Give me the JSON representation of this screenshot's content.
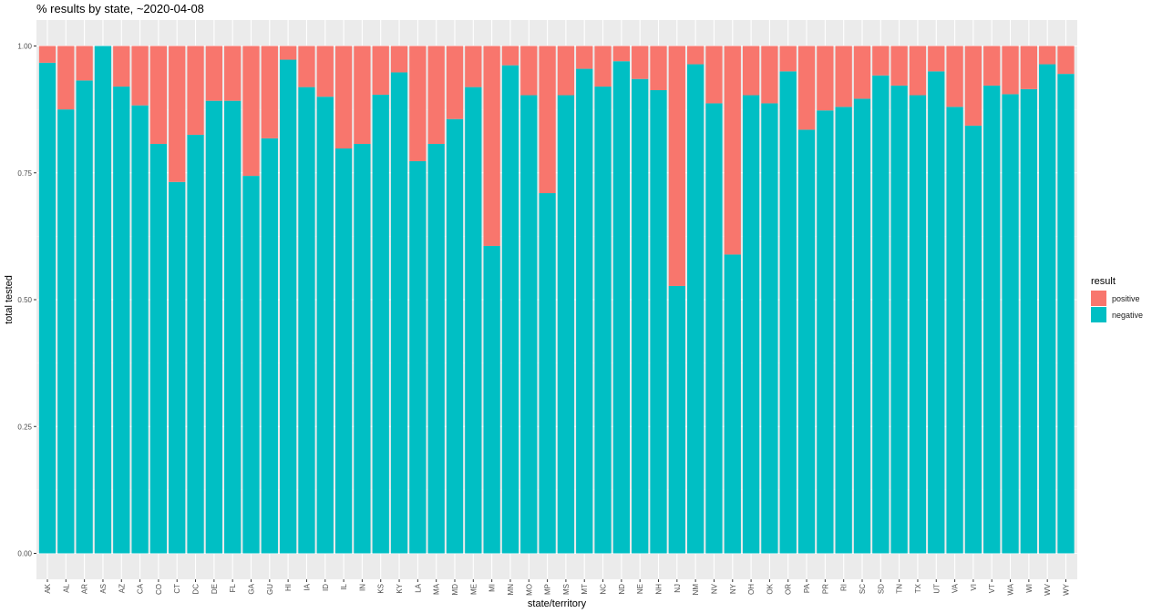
{
  "title": "% results by state, ~2020-04-08",
  "legend": {
    "title": "result",
    "items": [
      {
        "label": "positive",
        "color": "#F8766D"
      },
      {
        "label": "negative",
        "color": "#00BFC4"
      }
    ]
  },
  "chart_data": {
    "type": "bar",
    "stacked": true,
    "xlabel": "state/territory",
    "ylabel": "total tested",
    "ylim": [
      0,
      1
    ],
    "yticks": [
      "0.00",
      "0.25",
      "0.50",
      "0.75",
      "1.00"
    ],
    "grid": true,
    "legend_position": "right",
    "categories": [
      "AK",
      "AL",
      "AR",
      "AS",
      "AZ",
      "CA",
      "CO",
      "CT",
      "DC",
      "DE",
      "FL",
      "GA",
      "GU",
      "HI",
      "IA",
      "ID",
      "IL",
      "IN",
      "KS",
      "KY",
      "LA",
      "MA",
      "MD",
      "ME",
      "MI",
      "MN",
      "MO",
      "MP",
      "MS",
      "MT",
      "NC",
      "ND",
      "NE",
      "NH",
      "NJ",
      "NM",
      "NV",
      "NY",
      "OH",
      "OK",
      "OR",
      "PA",
      "PR",
      "RI",
      "SC",
      "SD",
      "TN",
      "TX",
      "UT",
      "VA",
      "VI",
      "VT",
      "WA",
      "WI",
      "WV",
      "WY"
    ],
    "series": [
      {
        "name": "positive",
        "color": "#F8766D",
        "values": [
          0.033,
          0.125,
          0.068,
          0.0,
          0.08,
          0.117,
          0.193,
          0.268,
          0.175,
          0.108,
          0.108,
          0.256,
          0.182,
          0.027,
          0.081,
          0.1,
          0.202,
          0.193,
          0.096,
          0.052,
          0.227,
          0.193,
          0.144,
          0.081,
          0.394,
          0.038,
          0.097,
          0.29,
          0.097,
          0.045,
          0.08,
          0.03,
          0.065,
          0.087,
          0.473,
          0.036,
          0.113,
          0.411,
          0.097,
          0.113,
          0.05,
          0.165,
          0.127,
          0.12,
          0.104,
          0.058,
          0.078,
          0.097,
          0.05,
          0.12,
          0.157,
          0.078,
          0.095,
          0.085,
          0.036,
          0.055
        ]
      },
      {
        "name": "negative",
        "color": "#00BFC4",
        "values": [
          0.967,
          0.875,
          0.932,
          1.0,
          0.92,
          0.883,
          0.807,
          0.732,
          0.825,
          0.892,
          0.892,
          0.744,
          0.818,
          0.973,
          0.919,
          0.9,
          0.798,
          0.807,
          0.904,
          0.948,
          0.773,
          0.807,
          0.856,
          0.919,
          0.606,
          0.962,
          0.903,
          0.71,
          0.903,
          0.955,
          0.92,
          0.97,
          0.935,
          0.913,
          0.527,
          0.964,
          0.887,
          0.589,
          0.903,
          0.887,
          0.95,
          0.835,
          0.873,
          0.88,
          0.896,
          0.942,
          0.922,
          0.903,
          0.95,
          0.88,
          0.843,
          0.922,
          0.905,
          0.915,
          0.964,
          0.945
        ]
      }
    ]
  }
}
